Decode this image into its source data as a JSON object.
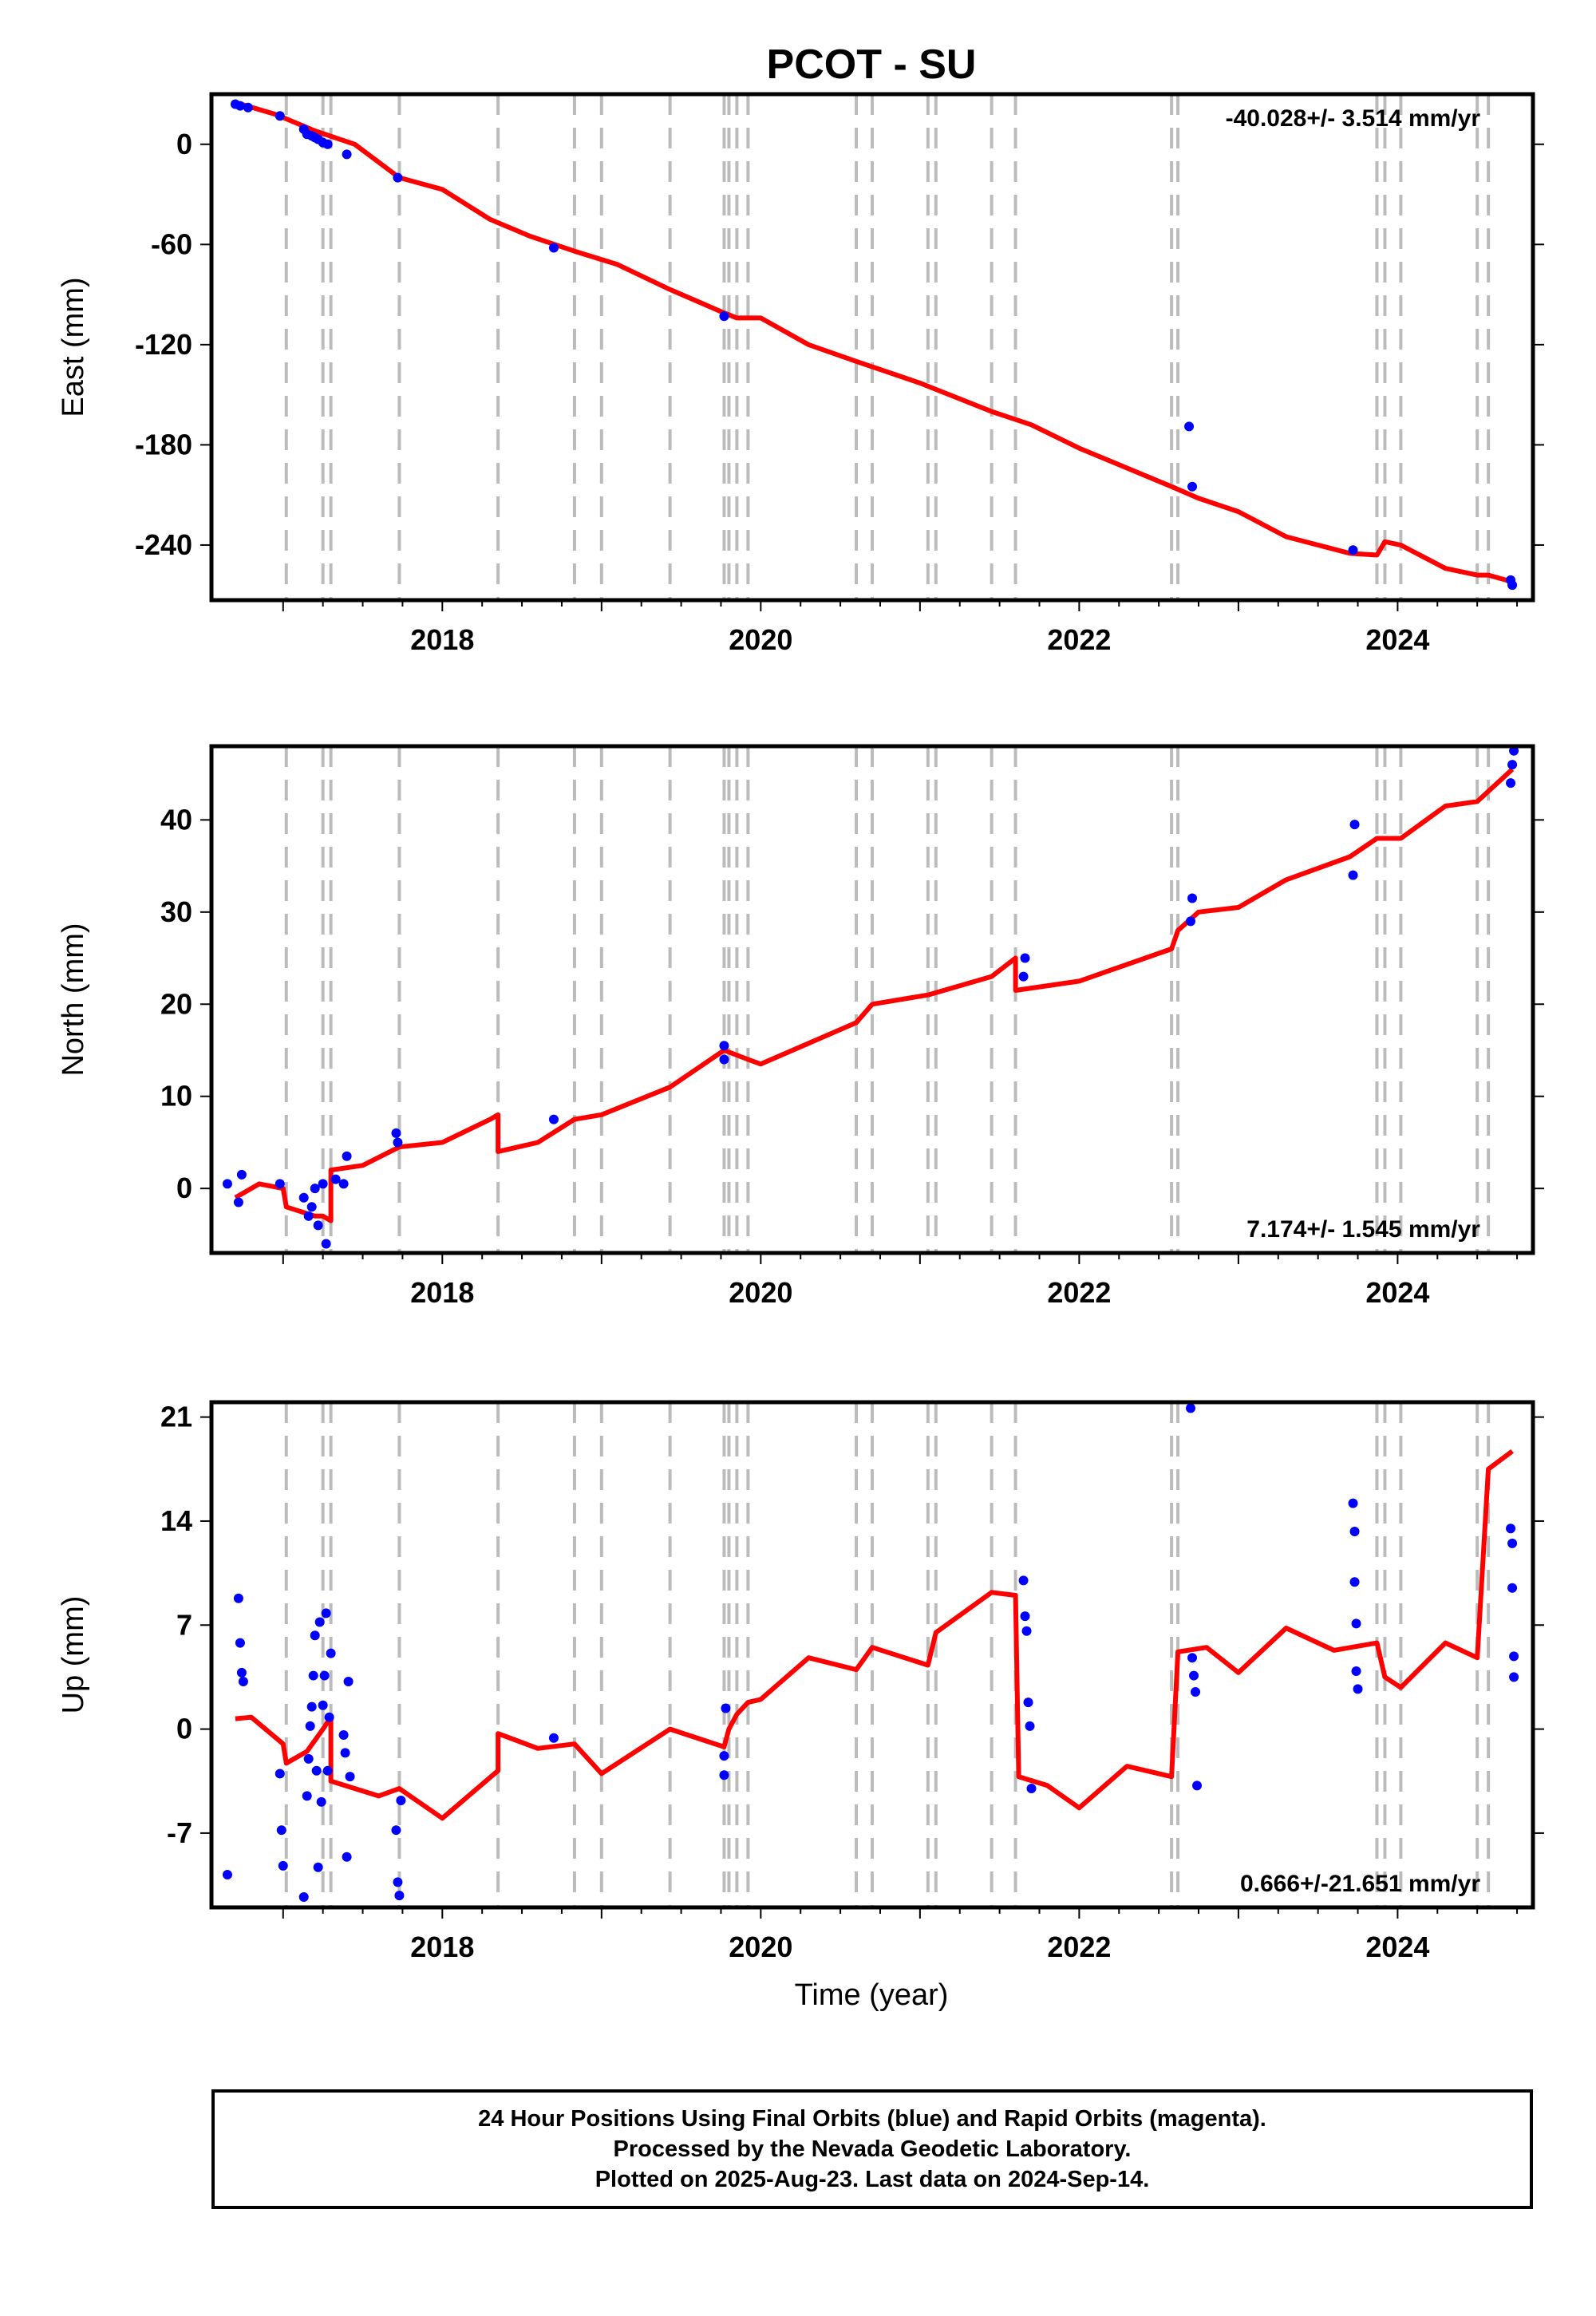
{
  "title": "PCOT - SU",
  "xlabel": "Time (year)",
  "colors": {
    "fit": "#ff0000",
    "final": "#0000ff",
    "rapid": "#ff00ff",
    "offset": "#bbbbbb"
  },
  "chart_data": [
    {
      "type": "scatter",
      "name": "East",
      "ylabel": "East (mm)",
      "rate": "-40.028+/- 3.514 mm/yr",
      "xlim": [
        2016.55,
        2024.85
      ],
      "ylim": [
        -273,
        30
      ],
      "yticks": [
        0,
        -60,
        -120,
        -180,
        -240
      ],
      "xticks": [
        2018,
        2020,
        2022,
        2024
      ],
      "offsets": [
        2017.02,
        2017.25,
        2017.3,
        2017.73,
        2018.35,
        2018.83,
        2019.0,
        2019.43,
        2019.77,
        2019.8,
        2019.85,
        2019.92,
        2020.6,
        2020.7,
        2021.05,
        2021.1,
        2021.45,
        2021.6,
        2022.58,
        2022.62,
        2023.87,
        2023.92,
        2024.02,
        2024.5,
        2024.57
      ],
      "fit": [
        [
          2016.7,
          25
        ],
        [
          2016.95,
          18
        ],
        [
          2017.2,
          8
        ],
        [
          2017.45,
          0
        ],
        [
          2017.73,
          -20
        ],
        [
          2018.0,
          -27
        ],
        [
          2018.3,
          -45
        ],
        [
          2018.55,
          -55
        ],
        [
          2018.83,
          -64
        ],
        [
          2019.1,
          -72
        ],
        [
          2019.43,
          -87
        ],
        [
          2019.77,
          -101
        ],
        [
          2019.85,
          -104
        ],
        [
          2020.0,
          -104
        ],
        [
          2020.3,
          -120
        ],
        [
          2020.6,
          -130
        ],
        [
          2021.0,
          -143
        ],
        [
          2021.45,
          -160
        ],
        [
          2021.7,
          -168
        ],
        [
          2022.0,
          -182
        ],
        [
          2022.58,
          -205
        ],
        [
          2022.75,
          -212
        ],
        [
          2023.0,
          -220
        ],
        [
          2023.3,
          -235
        ],
        [
          2023.7,
          -245
        ],
        [
          2023.87,
          -246
        ],
        [
          2023.92,
          -238
        ],
        [
          2024.02,
          -240
        ],
        [
          2024.3,
          -254
        ],
        [
          2024.5,
          -258
        ],
        [
          2024.57,
          -258
        ],
        [
          2024.72,
          -262
        ]
      ],
      "points": [
        [
          2016.7,
          24
        ],
        [
          2016.73,
          23
        ],
        [
          2016.78,
          22
        ],
        [
          2016.98,
          17
        ],
        [
          2017.13,
          9
        ],
        [
          2017.15,
          6
        ],
        [
          2017.18,
          5
        ],
        [
          2017.2,
          4
        ],
        [
          2017.22,
          3
        ],
        [
          2017.25,
          1
        ],
        [
          2017.28,
          0
        ],
        [
          2017.4,
          -6
        ],
        [
          2017.72,
          -20
        ],
        [
          2018.7,
          -62
        ],
        [
          2019.77,
          -103
        ],
        [
          2022.69,
          -169
        ],
        [
          2022.71,
          -205
        ],
        [
          2023.72,
          -243
        ],
        [
          2024.71,
          -261
        ],
        [
          2024.72,
          -264
        ]
      ]
    },
    {
      "type": "scatter",
      "name": "North",
      "ylabel": "North (mm)",
      "rate": "7.174+/- 1.545 mm/yr",
      "xlim": [
        2016.55,
        2024.85
      ],
      "ylim": [
        -7,
        48
      ],
      "yticks": [
        0,
        10,
        20,
        30,
        40
      ],
      "xticks": [
        2018,
        2020,
        2022,
        2024
      ],
      "offsets": [
        2017.02,
        2017.25,
        2017.3,
        2017.73,
        2018.35,
        2018.83,
        2019.0,
        2019.43,
        2019.77,
        2019.8,
        2019.85,
        2019.92,
        2020.6,
        2020.7,
        2021.05,
        2021.1,
        2021.45,
        2021.6,
        2022.58,
        2022.62,
        2023.87,
        2023.92,
        2024.02,
        2024.5,
        2024.57
      ],
      "fit": [
        [
          2016.7,
          -1
        ],
        [
          2016.85,
          0.5
        ],
        [
          2017.0,
          0
        ],
        [
          2017.02,
          -2
        ],
        [
          2017.2,
          -3
        ],
        [
          2017.25,
          -3
        ],
        [
          2017.3,
          -3.5
        ],
        [
          2017.3,
          2
        ],
        [
          2017.5,
          2.5
        ],
        [
          2017.73,
          4.5
        ],
        [
          2018.0,
          5
        ],
        [
          2018.3,
          7.5
        ],
        [
          2018.35,
          8
        ],
        [
          2018.35,
          4
        ],
        [
          2018.6,
          5
        ],
        [
          2018.83,
          7.5
        ],
        [
          2019.0,
          8
        ],
        [
          2019.43,
          11
        ],
        [
          2019.77,
          15
        ],
        [
          2019.92,
          14
        ],
        [
          2020.0,
          13.5
        ],
        [
          2020.6,
          18
        ],
        [
          2020.7,
          20
        ],
        [
          2021.05,
          21
        ],
        [
          2021.45,
          23
        ],
        [
          2021.6,
          25
        ],
        [
          2021.6,
          21.5
        ],
        [
          2022.0,
          22.5
        ],
        [
          2022.58,
          26
        ],
        [
          2022.62,
          28
        ],
        [
          2022.75,
          30
        ],
        [
          2023.0,
          30.5
        ],
        [
          2023.3,
          33.5
        ],
        [
          2023.7,
          36
        ],
        [
          2023.87,
          38
        ],
        [
          2024.02,
          38
        ],
        [
          2024.3,
          41.5
        ],
        [
          2024.5,
          42
        ],
        [
          2024.72,
          45.5
        ]
      ],
      "points": [
        [
          2016.65,
          0.5
        ],
        [
          2016.72,
          -1.5
        ],
        [
          2016.74,
          1.5
        ],
        [
          2016.98,
          0.5
        ],
        [
          2017.13,
          -1
        ],
        [
          2017.16,
          -3
        ],
        [
          2017.18,
          -2
        ],
        [
          2017.2,
          0
        ],
        [
          2017.22,
          -4
        ],
        [
          2017.25,
          0.5
        ],
        [
          2017.27,
          -6
        ],
        [
          2017.33,
          1
        ],
        [
          2017.38,
          0.5
        ],
        [
          2017.4,
          3.5
        ],
        [
          2017.71,
          6
        ],
        [
          2017.72,
          5
        ],
        [
          2018.7,
          7.5
        ],
        [
          2019.77,
          14
        ],
        [
          2019.77,
          15.5
        ],
        [
          2021.65,
          23
        ],
        [
          2021.66,
          25
        ],
        [
          2022.7,
          29
        ],
        [
          2022.71,
          31.5
        ],
        [
          2023.72,
          34
        ],
        [
          2023.73,
          39.5
        ],
        [
          2024.71,
          44
        ],
        [
          2024.72,
          46
        ],
        [
          2024.73,
          47.5
        ]
      ]
    },
    {
      "type": "scatter",
      "name": "Up",
      "ylabel": "Up (mm)",
      "rate": "0.666+/-21.651 mm/yr",
      "xlim": [
        2016.55,
        2024.85
      ],
      "ylim": [
        -12,
        22
      ],
      "yticks": [
        21,
        14,
        7,
        0,
        -7
      ],
      "xticks": [
        2018,
        2020,
        2022,
        2024
      ],
      "offsets": [
        2017.02,
        2017.25,
        2017.3,
        2017.73,
        2018.35,
        2018.83,
        2019.0,
        2019.43,
        2019.77,
        2019.8,
        2019.85,
        2019.92,
        2020.6,
        2020.7,
        2021.05,
        2021.1,
        2021.45,
        2021.6,
        2022.58,
        2022.62,
        2023.87,
        2023.92,
        2024.02,
        2024.5,
        2024.57
      ],
      "fit": [
        [
          2016.7,
          0.7
        ],
        [
          2016.8,
          0.8
        ],
        [
          2017.0,
          -1
        ],
        [
          2017.02,
          -2.3
        ],
        [
          2017.15,
          -1.5
        ],
        [
          2017.25,
          0
        ],
        [
          2017.3,
          0.8
        ],
        [
          2017.3,
          -3.5
        ],
        [
          2017.6,
          -4.5
        ],
        [
          2017.73,
          -4
        ],
        [
          2018.0,
          -6
        ],
        [
          2018.35,
          -2.8
        ],
        [
          2018.35,
          -0.3
        ],
        [
          2018.6,
          -1.3
        ],
        [
          2018.83,
          -1.0
        ],
        [
          2019.0,
          -3
        ],
        [
          2019.43,
          0
        ],
        [
          2019.77,
          -1.2
        ],
        [
          2019.8,
          0
        ],
        [
          2019.85,
          1
        ],
        [
          2019.92,
          1.8
        ],
        [
          2020.0,
          2
        ],
        [
          2020.3,
          4.8
        ],
        [
          2020.6,
          4
        ],
        [
          2020.7,
          5.5
        ],
        [
          2021.05,
          4.3
        ],
        [
          2021.1,
          6.5
        ],
        [
          2021.45,
          9.2
        ],
        [
          2021.6,
          9
        ],
        [
          2021.62,
          -3.2
        ],
        [
          2021.8,
          -3.8
        ],
        [
          2022.0,
          -5.3
        ],
        [
          2022.3,
          -2.5
        ],
        [
          2022.58,
          -3.2
        ],
        [
          2022.62,
          5.2
        ],
        [
          2022.8,
          5.5
        ],
        [
          2023.0,
          3.8
        ],
        [
          2023.3,
          6.8
        ],
        [
          2023.6,
          5.3
        ],
        [
          2023.87,
          5.8
        ],
        [
          2023.92,
          3.5
        ],
        [
          2024.02,
          2.8
        ],
        [
          2024.3,
          5.8
        ],
        [
          2024.5,
          4.8
        ],
        [
          2024.57,
          17.5
        ],
        [
          2024.72,
          18.7
        ]
      ],
      "points": [
        [
          2016.65,
          -9.8
        ],
        [
          2016.72,
          8.8
        ],
        [
          2016.73,
          5.8
        ],
        [
          2016.74,
          3.8
        ],
        [
          2016.75,
          3.2
        ],
        [
          2016.98,
          -3
        ],
        [
          2016.99,
          -6.8
        ],
        [
          2017.0,
          -9.2
        ],
        [
          2017.13,
          -11.3
        ],
        [
          2017.15,
          -4.5
        ],
        [
          2017.16,
          -2
        ],
        [
          2017.17,
          0.2
        ],
        [
          2017.18,
          1.5
        ],
        [
          2017.19,
          3.6
        ],
        [
          2017.2,
          6.3
        ],
        [
          2017.21,
          -2.8
        ],
        [
          2017.22,
          -9.3
        ],
        [
          2017.23,
          7.2
        ],
        [
          2017.24,
          -4.9
        ],
        [
          2017.25,
          1.6
        ],
        [
          2017.26,
          3.6
        ],
        [
          2017.27,
          7.8
        ],
        [
          2017.28,
          -2.8
        ],
        [
          2017.29,
          0.8
        ],
        [
          2017.3,
          5.1
        ],
        [
          2017.38,
          -0.4
        ],
        [
          2017.39,
          -1.6
        ],
        [
          2017.4,
          -8.6
        ],
        [
          2017.41,
          3.2
        ],
        [
          2017.42,
          -3.2
        ],
        [
          2017.71,
          -6.8
        ],
        [
          2017.72,
          -10.3
        ],
        [
          2017.73,
          -11.2
        ],
        [
          2017.74,
          -4.8
        ],
        [
          2018.7,
          -0.6
        ],
        [
          2019.77,
          -3.1
        ],
        [
          2019.77,
          -1.8
        ],
        [
          2019.78,
          1.4
        ],
        [
          2021.65,
          10
        ],
        [
          2021.66,
          7.6
        ],
        [
          2021.67,
          6.6
        ],
        [
          2021.68,
          1.8
        ],
        [
          2021.69,
          0.2
        ],
        [
          2021.7,
          -4
        ],
        [
          2022.7,
          21.6
        ],
        [
          2022.71,
          4.8
        ],
        [
          2022.72,
          3.6
        ],
        [
          2022.73,
          2.5
        ],
        [
          2022.74,
          -3.8
        ],
        [
          2023.72,
          15.2
        ],
        [
          2023.73,
          13.3
        ],
        [
          2023.73,
          9.9
        ],
        [
          2023.74,
          7.1
        ],
        [
          2023.74,
          3.9
        ],
        [
          2023.75,
          2.7
        ],
        [
          2024.71,
          13.5
        ],
        [
          2024.72,
          12.5
        ],
        [
          2024.72,
          9.5
        ],
        [
          2024.73,
          4.9
        ],
        [
          2024.73,
          3.5
        ]
      ]
    }
  ],
  "footer": {
    "line1": "24 Hour Positions Using Final Orbits (blue) and Rapid Orbits (magenta).",
    "line2": "Processed by the Nevada Geodetic Laboratory.",
    "line3": "Plotted on 2025-Aug-23. Last data on 2024-Sep-14."
  }
}
